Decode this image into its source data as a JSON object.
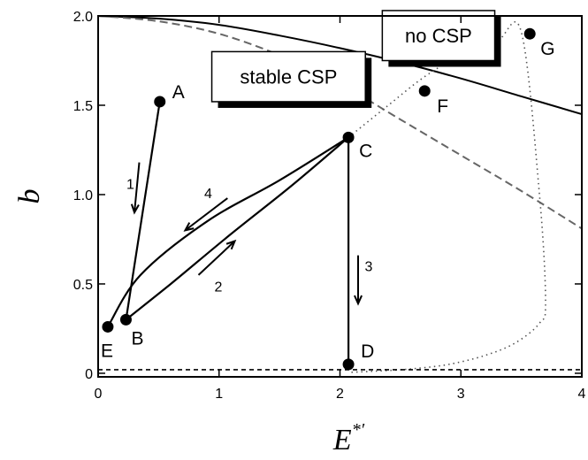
{
  "chart_data": {
    "type": "line",
    "title": "",
    "xlabel": "E",
    "xlabel_sup": "*′",
    "ylabel": "b",
    "xlim": [
      0,
      4
    ],
    "ylim": [
      -0.02,
      2.0
    ],
    "x_ticks": [
      0,
      1,
      2,
      3,
      4
    ],
    "x_tick_labels": [
      "0",
      "1",
      "2",
      "3",
      "4"
    ],
    "y_ticks": [
      0,
      0.5,
      1.0,
      1.5,
      2.0
    ],
    "y_tick_labels": [
      "0",
      "0.5",
      "1.0",
      "1.5",
      "2.0"
    ],
    "grid": false,
    "boundaries": [
      {
        "style": "solid",
        "x": [
          0,
          0.5,
          1.0,
          1.5,
          2.0,
          2.5,
          3.0,
          3.5,
          4.0
        ],
        "y": [
          2.0,
          1.985,
          1.95,
          1.89,
          1.82,
          1.74,
          1.65,
          1.55,
          1.45
        ]
      },
      {
        "style": "dashed",
        "x": [
          0,
          0.5,
          1.0,
          1.5,
          2.0,
          2.5,
          3.0,
          3.5,
          4.0
        ],
        "y": [
          2.0,
          1.97,
          1.9,
          1.78,
          1.62,
          1.42,
          1.22,
          1.02,
          0.81
        ]
      },
      {
        "style": "dotted",
        "x": [
          2.07,
          2.4,
          2.7,
          3.0,
          3.3,
          3.5,
          3.65,
          3.7,
          3.65,
          3.45,
          3.2,
          2.9,
          2.6,
          2.3,
          2.07
        ],
        "y": [
          1.32,
          1.5,
          1.66,
          1.78,
          1.86,
          1.91,
          1.0,
          0.4,
          0.28,
          0.17,
          0.1,
          0.05,
          0.025,
          0.012,
          0.005
        ]
      },
      {
        "style": "short-dashed",
        "x": [
          0,
          4
        ],
        "y": [
          0.02,
          0.02
        ]
      }
    ],
    "points": [
      {
        "label": "A",
        "x": 0.51,
        "y": 1.52
      },
      {
        "label": "B",
        "x": 0.23,
        "y": 0.3
      },
      {
        "label": "C",
        "x": 2.07,
        "y": 1.32
      },
      {
        "label": "D",
        "x": 2.07,
        "y": 0.05
      },
      {
        "label": "E",
        "x": 0.08,
        "y": 0.26
      },
      {
        "label": "F",
        "x": 2.7,
        "y": 1.58
      },
      {
        "label": "G",
        "x": 3.57,
        "y": 1.9
      }
    ],
    "paths": [
      {
        "from": "A",
        "to": "B",
        "x": [
          0.51,
          0.23
        ],
        "y": [
          1.52,
          0.3
        ]
      },
      {
        "from": "B",
        "to": "C",
        "x": [
          0.23,
          0.6,
          1.1,
          1.6,
          2.07
        ],
        "y": [
          0.3,
          0.5,
          0.78,
          1.05,
          1.32
        ]
      },
      {
        "from": "C",
        "to": "D",
        "x": [
          2.07,
          2.07
        ],
        "y": [
          1.32,
          0.05
        ]
      },
      {
        "from": "C",
        "to": "E",
        "x": [
          2.07,
          1.5,
          0.9,
          0.35,
          0.08
        ],
        "y": [
          1.32,
          1.08,
          0.85,
          0.55,
          0.26
        ]
      }
    ],
    "arrows": [
      {
        "label": "1",
        "x": [
          0.34,
          0.3
        ],
        "y": [
          1.18,
          0.9
        ]
      },
      {
        "label": "2",
        "x": [
          0.83,
          1.13
        ],
        "y": [
          0.55,
          0.74
        ]
      },
      {
        "label": "3",
        "x": [
          2.15,
          2.15
        ],
        "y": [
          0.66,
          0.39
        ]
      },
      {
        "label": "4",
        "x": [
          1.07,
          0.72
        ],
        "y": [
          0.98,
          0.8
        ]
      }
    ],
    "annotations": [
      {
        "text": "stable CSP",
        "x_range": [
          0.94,
          2.21
        ],
        "y_range": [
          1.52,
          1.8
        ]
      },
      {
        "text": "no CSP",
        "x_range": [
          2.35,
          3.28
        ],
        "y_range": [
          1.75,
          2.03
        ]
      }
    ]
  }
}
